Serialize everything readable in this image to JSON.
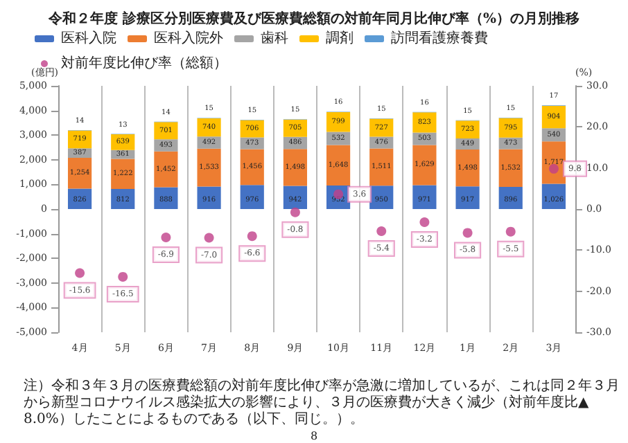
{
  "chart_data": {
    "type": "bar",
    "title": "令和２年度 診療区分別医療費及び医療費総額の対前年同月比伸び率（%）の月別推移",
    "ylabel": "(億円)",
    "y2label": "(%)",
    "categories": [
      "4月",
      "5月",
      "6月",
      "7月",
      "8月",
      "9月",
      "10月",
      "11月",
      "12月",
      "1月",
      "2月",
      "3月"
    ],
    "stacked": true,
    "legend": "top",
    "grid": "x",
    "series": [
      {
        "name": "医科入院",
        "color": "#4472c4",
        "values": [
          826,
          812,
          888,
          916,
          976,
          942,
          952,
          950,
          971,
          917,
          896,
          1026
        ],
        "value_labels": [
          "826",
          "812",
          "888",
          "916",
          "976",
          "942",
          "952",
          "950",
          "971",
          "917",
          "896",
          "1,026"
        ]
      },
      {
        "name": "医科入院外",
        "color": "#ed7d31",
        "values": [
          1254,
          1222,
          1452,
          1533,
          1456,
          1498,
          1648,
          1511,
          1629,
          1498,
          1532,
          1717
        ],
        "value_labels": [
          "1,254",
          "1,222",
          "1,452",
          "1,533",
          "1,456",
          "1,498",
          "1,648",
          "1,511",
          "1,629",
          "1,498",
          "1,532",
          "1,717"
        ]
      },
      {
        "name": "歯科",
        "color": "#a5a5a5",
        "values": [
          387,
          361,
          493,
          492,
          473,
          486,
          532,
          476,
          503,
          449,
          473,
          540
        ],
        "value_labels": [
          "387",
          "361",
          "493",
          "492",
          "473",
          "486",
          "532",
          "476",
          "503",
          "449",
          "473",
          "540"
        ]
      },
      {
        "name": "調剤",
        "color": "#ffc000",
        "values": [
          719,
          639,
          701,
          740,
          706,
          705,
          799,
          727,
          823,
          723,
          795,
          904
        ],
        "value_labels": [
          "719",
          "639",
          "701",
          "740",
          "706",
          "705",
          "799",
          "727",
          "823",
          "723",
          "795",
          "904"
        ]
      },
      {
        "name": "訪問看護療養費",
        "color": "#5b9bd5",
        "values": [
          14,
          13,
          14,
          15,
          15,
          15,
          16,
          15,
          16,
          15,
          15,
          17
        ],
        "value_labels": [
          "14",
          "13",
          "14",
          "15",
          "15",
          "15",
          "16",
          "15",
          "16",
          "15",
          "15",
          "17"
        ]
      },
      {
        "name": "対前年度比伸び率（総額）",
        "type": "scatter",
        "axis": "y2",
        "color": "#c0408a",
        "marker": "circle",
        "values": [
          -15.6,
          -16.5,
          -6.9,
          -7.0,
          -6.6,
          -0.8,
          3.6,
          -5.4,
          -3.2,
          -5.8,
          -5.5,
          9.8
        ],
        "value_labels": [
          "-15.6",
          "-16.5",
          "-6.9",
          "-7.0",
          "-6.6",
          "-0.8",
          "3.6",
          "-5.4",
          "-3.2",
          "-5.8",
          "-5.5",
          "9.8"
        ]
      }
    ],
    "ylim": [
      -5000,
      5000
    ],
    "yticks": [
      {
        "value": -5000,
        "label": "-5,000"
      },
      {
        "value": -4000,
        "label": "-4,000"
      },
      {
        "value": -3000,
        "label": "-3,000"
      },
      {
        "value": -2000,
        "label": "-2,000"
      },
      {
        "value": -1000,
        "label": "-1,000"
      },
      0,
      {
        "value": 1000,
        "label": "1,000"
      },
      {
        "value": 2000,
        "label": "2,000"
      },
      {
        "value": 3000,
        "label": "3,000"
      },
      {
        "value": 4000,
        "label": "4,000"
      },
      {
        "value": 5000,
        "label": "5,000"
      }
    ],
    "y2lim": [
      -30,
      30
    ],
    "y2ticks": [
      {
        "value": -30,
        "label": "-30.0"
      },
      {
        "value": -20,
        "label": "-20.0"
      },
      {
        "value": -10,
        "label": "-10.0"
      },
      {
        "value": 0,
        "label": "0.0"
      },
      {
        "value": 10,
        "label": "10.0"
      },
      {
        "value": 20,
        "label": "20.0"
      },
      {
        "value": 30,
        "label": "30.0"
      }
    ],
    "annotations": [
      "注）令和３年３月の医療費総額の対前年度比伸び率が急激に増加しているが、これは同２年３月から新型コロナウイルス感染拡大の影響により、３月の医療費が大きく減少（対前年度比▲8.0%）したことによるものである（以下、同じ。）。",
      "8"
    ]
  }
}
